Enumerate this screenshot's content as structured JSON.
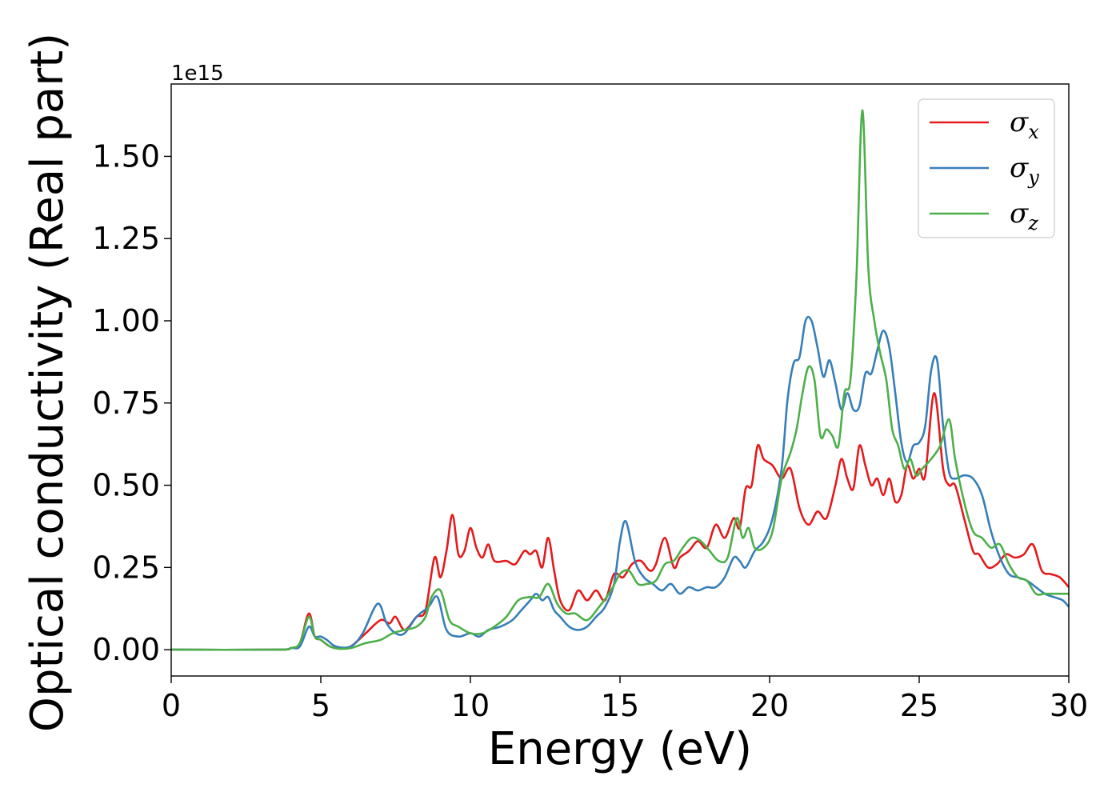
{
  "chart_data": {
    "type": "line",
    "title": "",
    "xlabel": "Energy (eV)",
    "ylabel": "Optical conductivity (Real part)",
    "y_offset_label": "1e15",
    "xlim": [
      0,
      30
    ],
    "ylim": [
      -0.08,
      1.72
    ],
    "xticks": [
      0,
      5,
      10,
      15,
      20,
      25,
      30
    ],
    "xtick_labels": [
      "0",
      "5",
      "10",
      "15",
      "20",
      "25",
      "30"
    ],
    "yticks": [
      0.0,
      0.25,
      0.5,
      0.75,
      1.0,
      1.25,
      1.5
    ],
    "ytick_labels": [
      "0.00",
      "0.25",
      "0.50",
      "0.75",
      "1.00",
      "1.25",
      "1.50"
    ],
    "grid": false,
    "legend_position": "upper-right",
    "series": [
      {
        "name": "σ",
        "subscript": "x",
        "color": "#e41a1c",
        "x": [
          0,
          3.5,
          4.0,
          4.3,
          4.6,
          4.8,
          5.0,
          5.3,
          5.6,
          6.0,
          6.5,
          7.0,
          7.3,
          7.5,
          7.8,
          8.2,
          8.5,
          8.8,
          9.0,
          9.2,
          9.4,
          9.6,
          9.8,
          10.0,
          10.2,
          10.4,
          10.6,
          10.8,
          11.2,
          11.5,
          11.8,
          12.0,
          12.2,
          12.4,
          12.6,
          12.8,
          13.0,
          13.3,
          13.6,
          13.9,
          14.2,
          14.5,
          14.8,
          15.1,
          15.4,
          15.7,
          16.0,
          16.2,
          16.5,
          16.8,
          17.0,
          17.3,
          17.6,
          17.9,
          18.2,
          18.5,
          18.8,
          19.0,
          19.2,
          19.4,
          19.6,
          19.8,
          20.1,
          20.4,
          20.7,
          21.0,
          21.3,
          21.6,
          21.9,
          22.2,
          22.4,
          22.6,
          22.8,
          23.0,
          23.2,
          23.4,
          23.6,
          23.8,
          24.0,
          24.2,
          24.4,
          24.6,
          24.8,
          25.0,
          25.2,
          25.5,
          25.8,
          26.0,
          26.2,
          26.5,
          26.8,
          27.0,
          27.3,
          27.6,
          27.9,
          28.2,
          28.5,
          28.8,
          29.1,
          29.4,
          29.7,
          30
        ],
        "values": [
          0,
          0,
          0.005,
          0.02,
          0.11,
          0.04,
          0.03,
          0.01,
          0.005,
          0.01,
          0.05,
          0.09,
          0.08,
          0.1,
          0.06,
          0.1,
          0.12,
          0.28,
          0.22,
          0.3,
          0.41,
          0.29,
          0.3,
          0.37,
          0.31,
          0.28,
          0.32,
          0.27,
          0.27,
          0.26,
          0.3,
          0.29,
          0.3,
          0.25,
          0.34,
          0.24,
          0.15,
          0.12,
          0.18,
          0.15,
          0.18,
          0.15,
          0.23,
          0.22,
          0.26,
          0.27,
          0.24,
          0.26,
          0.34,
          0.25,
          0.28,
          0.3,
          0.33,
          0.31,
          0.38,
          0.34,
          0.4,
          0.37,
          0.49,
          0.5,
          0.62,
          0.58,
          0.56,
          0.52,
          0.55,
          0.43,
          0.38,
          0.42,
          0.4,
          0.5,
          0.58,
          0.52,
          0.49,
          0.62,
          0.56,
          0.5,
          0.52,
          0.47,
          0.52,
          0.45,
          0.47,
          0.56,
          0.52,
          0.55,
          0.53,
          0.78,
          0.55,
          0.5,
          0.5,
          0.4,
          0.3,
          0.29,
          0.25,
          0.26,
          0.29,
          0.28,
          0.29,
          0.32,
          0.24,
          0.23,
          0.22,
          0.19
        ]
      },
      {
        "name": "σ",
        "subscript": "y",
        "color": "#377eb8",
        "x": [
          0,
          3.5,
          4.0,
          4.3,
          4.6,
          4.8,
          5.0,
          5.2,
          5.5,
          6.0,
          6.4,
          6.9,
          7.2,
          7.5,
          7.8,
          8.2,
          8.6,
          8.9,
          9.2,
          9.6,
          10.0,
          10.3,
          10.6,
          11.0,
          11.4,
          11.7,
          12.0,
          12.2,
          12.4,
          12.6,
          12.8,
          13.0,
          13.3,
          13.6,
          13.9,
          14.2,
          14.5,
          14.8,
          15.0,
          15.2,
          15.5,
          15.8,
          16.1,
          16.4,
          16.7,
          17.0,
          17.3,
          17.6,
          17.9,
          18.2,
          18.5,
          18.8,
          19.0,
          19.2,
          19.5,
          19.8,
          20.1,
          20.4,
          20.6,
          20.8,
          21.0,
          21.2,
          21.4,
          21.6,
          21.8,
          22.0,
          22.2,
          22.4,
          22.6,
          22.8,
          23.0,
          23.2,
          23.4,
          23.6,
          23.8,
          24.0,
          24.2,
          24.4,
          24.6,
          24.8,
          25.0,
          25.2,
          25.4,
          25.6,
          25.8,
          26.0,
          26.2,
          26.5,
          26.8,
          27.1,
          27.4,
          27.7,
          28.0,
          28.3,
          28.6,
          28.9,
          29.2,
          29.5,
          29.8,
          30
        ],
        "values": [
          0,
          0,
          0.005,
          0.01,
          0.07,
          0.04,
          0.04,
          0.03,
          0.01,
          0.01,
          0.05,
          0.14,
          0.08,
          0.05,
          0.05,
          0.1,
          0.13,
          0.16,
          0.06,
          0.04,
          0.05,
          0.04,
          0.06,
          0.07,
          0.09,
          0.12,
          0.15,
          0.17,
          0.15,
          0.16,
          0.12,
          0.1,
          0.07,
          0.06,
          0.07,
          0.1,
          0.13,
          0.2,
          0.33,
          0.39,
          0.27,
          0.22,
          0.2,
          0.18,
          0.2,
          0.17,
          0.19,
          0.18,
          0.19,
          0.19,
          0.22,
          0.28,
          0.27,
          0.25,
          0.3,
          0.33,
          0.4,
          0.55,
          0.76,
          0.87,
          0.89,
          1.0,
          1.0,
          0.92,
          0.83,
          0.88,
          0.81,
          0.73,
          0.78,
          0.73,
          0.74,
          0.84,
          0.84,
          0.91,
          0.97,
          0.92,
          0.78,
          0.63,
          0.57,
          0.62,
          0.63,
          0.68,
          0.85,
          0.88,
          0.68,
          0.54,
          0.52,
          0.53,
          0.52,
          0.47,
          0.36,
          0.28,
          0.23,
          0.22,
          0.21,
          0.19,
          0.17,
          0.16,
          0.15,
          0.13
        ]
      },
      {
        "name": "σ",
        "subscript": "z",
        "color": "#4daf4a",
        "x": [
          0,
          3.5,
          4.0,
          4.3,
          4.6,
          4.8,
          5.0,
          5.3,
          5.6,
          6.0,
          6.5,
          7.0,
          7.4,
          7.8,
          8.2,
          8.5,
          8.7,
          9.0,
          9.3,
          9.6,
          10.0,
          10.4,
          10.8,
          11.2,
          11.6,
          12.0,
          12.3,
          12.6,
          12.9,
          13.2,
          13.5,
          13.9,
          14.3,
          14.7,
          15.0,
          15.3,
          15.6,
          15.9,
          16.2,
          16.5,
          16.8,
          17.1,
          17.4,
          17.7,
          18.0,
          18.3,
          18.6,
          18.9,
          19.1,
          19.3,
          19.5,
          19.8,
          20.1,
          20.4,
          20.7,
          20.9,
          21.1,
          21.3,
          21.5,
          21.7,
          21.9,
          22.1,
          22.3,
          22.5,
          22.7,
          22.9,
          23.1,
          23.3,
          23.5,
          23.7,
          23.9,
          24.1,
          24.3,
          24.5,
          24.7,
          24.9,
          25.1,
          25.4,
          25.7,
          26.0,
          26.2,
          26.5,
          26.8,
          27.1,
          27.4,
          27.7,
          28.0,
          28.3,
          28.6,
          28.9,
          29.2,
          29.5,
          29.8,
          30
        ],
        "values": [
          0,
          0,
          0.005,
          0.02,
          0.1,
          0.04,
          0.03,
          0.01,
          0.003,
          0.005,
          0.02,
          0.03,
          0.05,
          0.06,
          0.07,
          0.1,
          0.16,
          0.18,
          0.09,
          0.07,
          0.05,
          0.05,
          0.07,
          0.1,
          0.15,
          0.16,
          0.16,
          0.2,
          0.14,
          0.11,
          0.11,
          0.09,
          0.13,
          0.18,
          0.23,
          0.24,
          0.2,
          0.2,
          0.21,
          0.26,
          0.27,
          0.31,
          0.34,
          0.33,
          0.3,
          0.27,
          0.28,
          0.4,
          0.34,
          0.37,
          0.31,
          0.31,
          0.36,
          0.52,
          0.6,
          0.67,
          0.78,
          0.86,
          0.82,
          0.65,
          0.67,
          0.65,
          0.62,
          0.78,
          0.82,
          1.13,
          1.64,
          1.16,
          1.0,
          0.9,
          0.82,
          0.67,
          0.62,
          0.55,
          0.58,
          0.53,
          0.55,
          0.58,
          0.62,
          0.7,
          0.58,
          0.45,
          0.36,
          0.34,
          0.31,
          0.32,
          0.26,
          0.22,
          0.21,
          0.17,
          0.17,
          0.17,
          0.17,
          0.17
        ]
      }
    ]
  }
}
